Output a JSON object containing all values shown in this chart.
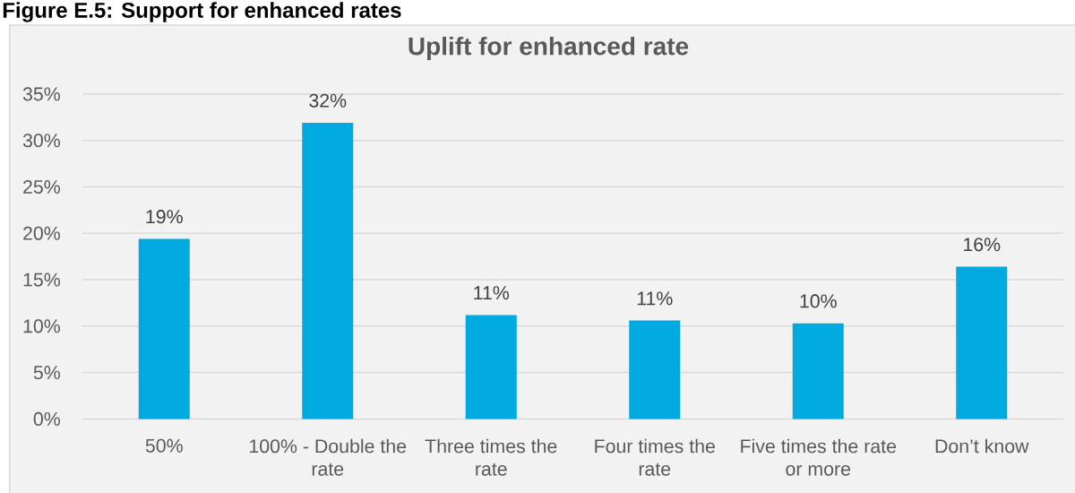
{
  "chart_data": {
    "type": "bar",
    "title": "Uplift for enhanced rate",
    "annotations": [
      "Figure E.5: Support for enhanced rates"
    ],
    "categories": [
      "50%",
      "100% - Double the rate",
      "Three times the rate",
      "Four times the rate",
      "Five times the rate or more",
      "Don’t know"
    ],
    "values": [
      19.4,
      31.9,
      11.2,
      10.6,
      10.3,
      16.4
    ],
    "value_labels": [
      "19%",
      "32%",
      "11%",
      "11%",
      "10%",
      "16%"
    ],
    "color": "#00a9e0",
    "ylim": [
      0,
      35
    ],
    "yticks": [
      {
        "value": 0,
        "label": "0%"
      },
      {
        "value": 5,
        "label": "5%"
      },
      {
        "value": 10,
        "label": "10%"
      },
      {
        "value": 15,
        "label": "15%"
      },
      {
        "value": 20,
        "label": "20%"
      },
      {
        "value": 25,
        "label": "25%"
      },
      {
        "value": 30,
        "label": "30%"
      },
      {
        "value": 35,
        "label": "35%"
      }
    ],
    "grid": "y"
  }
}
